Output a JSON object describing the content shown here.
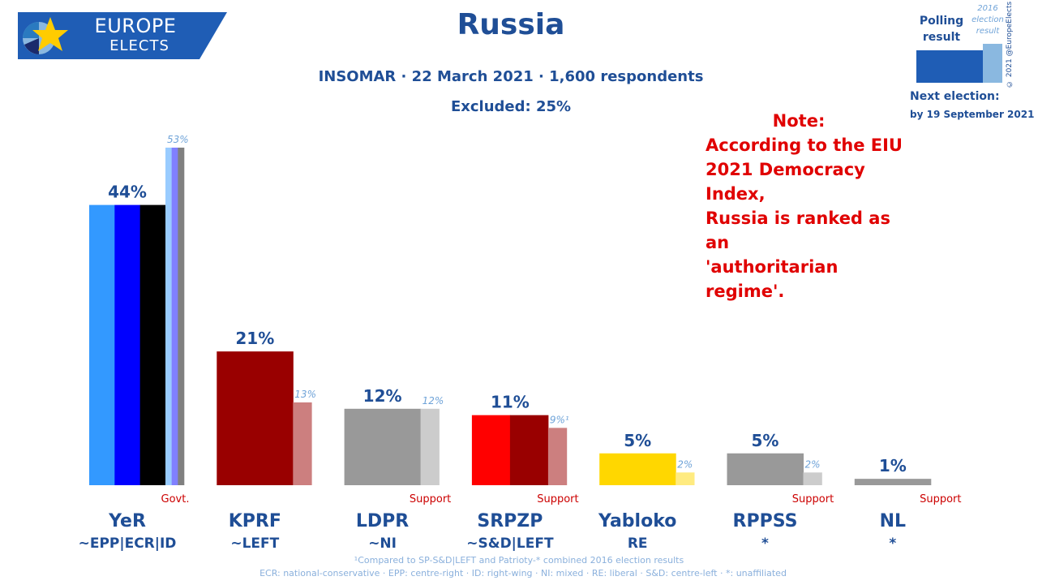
{
  "header": {
    "logo_line1": "EUROPE",
    "logo_line2": "ELECTS",
    "title": "Russia",
    "subtitle": "INSOMAR · 22 March 2021 · 1,600 respondents",
    "excluded": "Excluded: 25%"
  },
  "legend": {
    "polling_label": "Polling result",
    "previous_label": "2016 election result",
    "next_election_label": "Next election:",
    "next_election_date": "by 19 September 2021",
    "copyright": "© 2021 @EuropeElects"
  },
  "note": {
    "heading": "Note:",
    "lines": [
      "According to the EIU",
      "2021 Democracy Index,",
      "Russia is ranked as an",
      "'authoritarian regime'."
    ]
  },
  "footnotes": {
    "line1": "¹Compared to SP-S&D|LEFT and Patrioty-* combined 2016 election results",
    "line2": "ECR: national-conservative · EPP: centre-right · ID: right-wing · NI: mixed · RE: liberal · S&D: centre-left · *: unaffiliated"
  },
  "colors": {
    "title": "#1f4e96",
    "note": "#e00000",
    "status": "#cc0000",
    "footnote": "#8ab0dc"
  },
  "chart_data": {
    "type": "bar",
    "ylim": [
      0,
      55
    ],
    "categories": [
      "YeR",
      "KPRF",
      "LDPR",
      "SRPZP",
      "Yabloko",
      "RPPSS",
      "NL"
    ],
    "groups": [
      "~EPP|ECR|ID",
      "~LEFT",
      "~NI",
      "~S&D|LEFT",
      "RE",
      "*",
      "*"
    ],
    "status": [
      "Govt.",
      "",
      "Support",
      "Support",
      "",
      "Support",
      "Support"
    ],
    "poll": {
      "values": [
        44,
        21,
        12,
        11,
        5,
        5,
        1
      ],
      "labels": [
        "44%",
        "21%",
        "12%",
        "11%",
        "5%",
        "5%",
        "1%"
      ],
      "colors": [
        [
          "#3399ff",
          "#0000ff",
          "#000000"
        ],
        [
          "#990000"
        ],
        [
          "#999999"
        ],
        [
          "#ff0000",
          "#990000"
        ],
        [
          "#ffd700"
        ],
        [
          "#999999"
        ],
        [
          "#999999"
        ]
      ]
    },
    "previous": {
      "values": [
        53,
        13,
        12,
        9,
        2,
        2,
        null
      ],
      "labels": [
        "53%",
        "13%",
        "12%",
        "9%¹",
        "2%",
        "2%",
        ""
      ],
      "colors": [
        [
          "#99ccff",
          "#8080ff",
          "#808080"
        ],
        [
          "#cc7f7f"
        ],
        [
          "#cccccc"
        ],
        [
          "#cc7f7f"
        ],
        [
          "#ffeb80"
        ],
        [
          "#cccccc"
        ],
        []
      ]
    }
  }
}
